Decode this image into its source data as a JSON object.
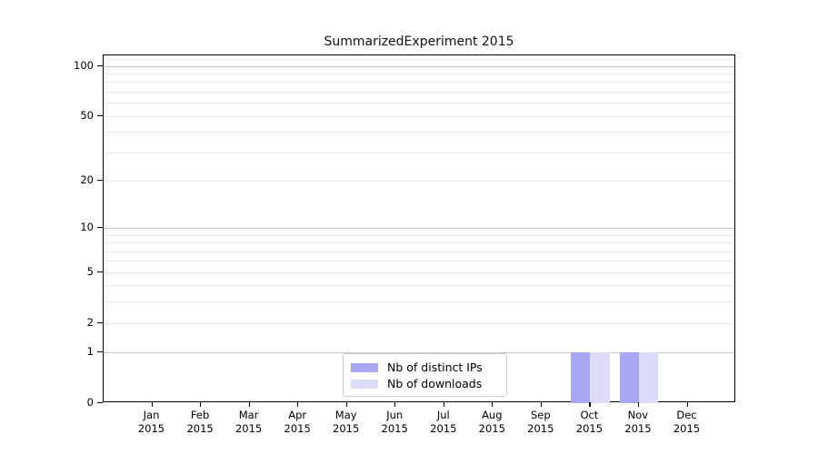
{
  "chart_data": {
    "type": "bar",
    "title": "SummarizedExperiment 2015",
    "categories": [
      "Jan",
      "Feb",
      "Mar",
      "Apr",
      "May",
      "Jun",
      "Jul",
      "Aug",
      "Sep",
      "Oct",
      "Nov",
      "Dec"
    ],
    "category_year": "2015",
    "series": [
      {
        "name": "Nb of distinct IPs",
        "color": "#a7a7f4",
        "values": [
          0,
          0,
          0,
          0,
          0,
          0,
          0,
          0,
          0,
          1,
          1,
          0
        ]
      },
      {
        "name": "Nb of downloads",
        "color": "#dcdcf9",
        "values": [
          0,
          0,
          0,
          0,
          0,
          0,
          0,
          0,
          0,
          1,
          1,
          0
        ]
      }
    ],
    "y_axis": {
      "scale": "log1p",
      "tick_labels": [
        "0",
        "1",
        "2",
        "5",
        "10",
        "20",
        "50",
        "100"
      ],
      "tick_values": [
        0,
        1,
        2,
        5,
        10,
        20,
        50,
        100
      ],
      "major_grid_values": [
        1,
        10,
        100
      ],
      "minor_grid_values": [
        2,
        3,
        4,
        5,
        6,
        7,
        8,
        9,
        20,
        30,
        40,
        50,
        60,
        70,
        80,
        90,
        110
      ],
      "ylim": [
        0,
        116
      ]
    },
    "legend": {
      "position": "lower-center-inside"
    },
    "grid": true,
    "colors": {
      "major_grid": "#c6c6c6",
      "minor_grid": "#eaeaea",
      "spine": "#000000",
      "background": "#ffffff"
    }
  }
}
